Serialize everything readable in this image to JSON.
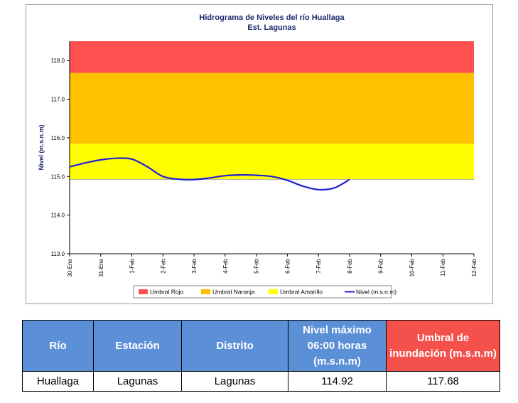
{
  "chart_data": {
    "type": "area",
    "title": "Hidrograma de Niveles del río Huallaga",
    "subtitle": "Est. Lagunas",
    "ylabel": "Nivel (m.s.n.m)",
    "xlabel": "",
    "ylim": [
      113.0,
      118.5
    ],
    "yticks": [
      "113.0",
      "114.0",
      "115.0",
      "116.0",
      "117.0",
      "118.0"
    ],
    "categories": [
      "30-Ene",
      "31-Ene",
      "1-Feb",
      "2-Feb",
      "3-Feb",
      "4-Feb",
      "5-Feb",
      "6-Feb",
      "7-Feb",
      "8-Feb",
      "9-Feb",
      "10-Feb",
      "11-Feb",
      "12-Feb"
    ],
    "bands": [
      {
        "name": "Umbral Rojo",
        "from": 117.68,
        "to": 118.5,
        "color": "#ff5050"
      },
      {
        "name": "Umbral Naranja",
        "from": 115.85,
        "to": 117.68,
        "color": "#ffc000"
      },
      {
        "name": "Umbral Amarillo",
        "from": 114.92,
        "to": 115.85,
        "color": "#ffff00"
      }
    ],
    "series": [
      {
        "name": "Nivel (m.s.n.m)",
        "color": "#1f1fd8",
        "x": [
          0,
          0.5,
          1,
          1.5,
          2,
          2.5,
          3,
          3.5,
          4,
          4.5,
          5,
          5.5,
          6,
          6.5,
          7,
          7.5,
          8,
          8.5,
          9
        ],
        "values": [
          115.25,
          115.35,
          115.43,
          115.47,
          115.45,
          115.25,
          115.0,
          114.93,
          114.92,
          114.96,
          115.02,
          115.04,
          115.03,
          115.0,
          114.9,
          114.75,
          114.66,
          114.7,
          114.92
        ]
      }
    ],
    "legend_position": "bottom",
    "legend": [
      "Umbral Rojo",
      "Umbral Naranja",
      "Umbral Amarillo",
      "Nivel (m.s.n.m)"
    ]
  },
  "table": {
    "headers": [
      "Río",
      "Estación",
      "Distrito",
      "Nivel máximo 06:00 horas (m.s.n.m)",
      "Umbral de inundación (m.s.n.m)"
    ],
    "header_colors": [
      "#5b8fd6",
      "#5b8fd6",
      "#5b8fd6",
      "#5b8fd6",
      "#f4514c"
    ],
    "row": [
      "Huallaga",
      "Lagunas",
      "Lagunas",
      "114.92",
      "117.68"
    ]
  }
}
